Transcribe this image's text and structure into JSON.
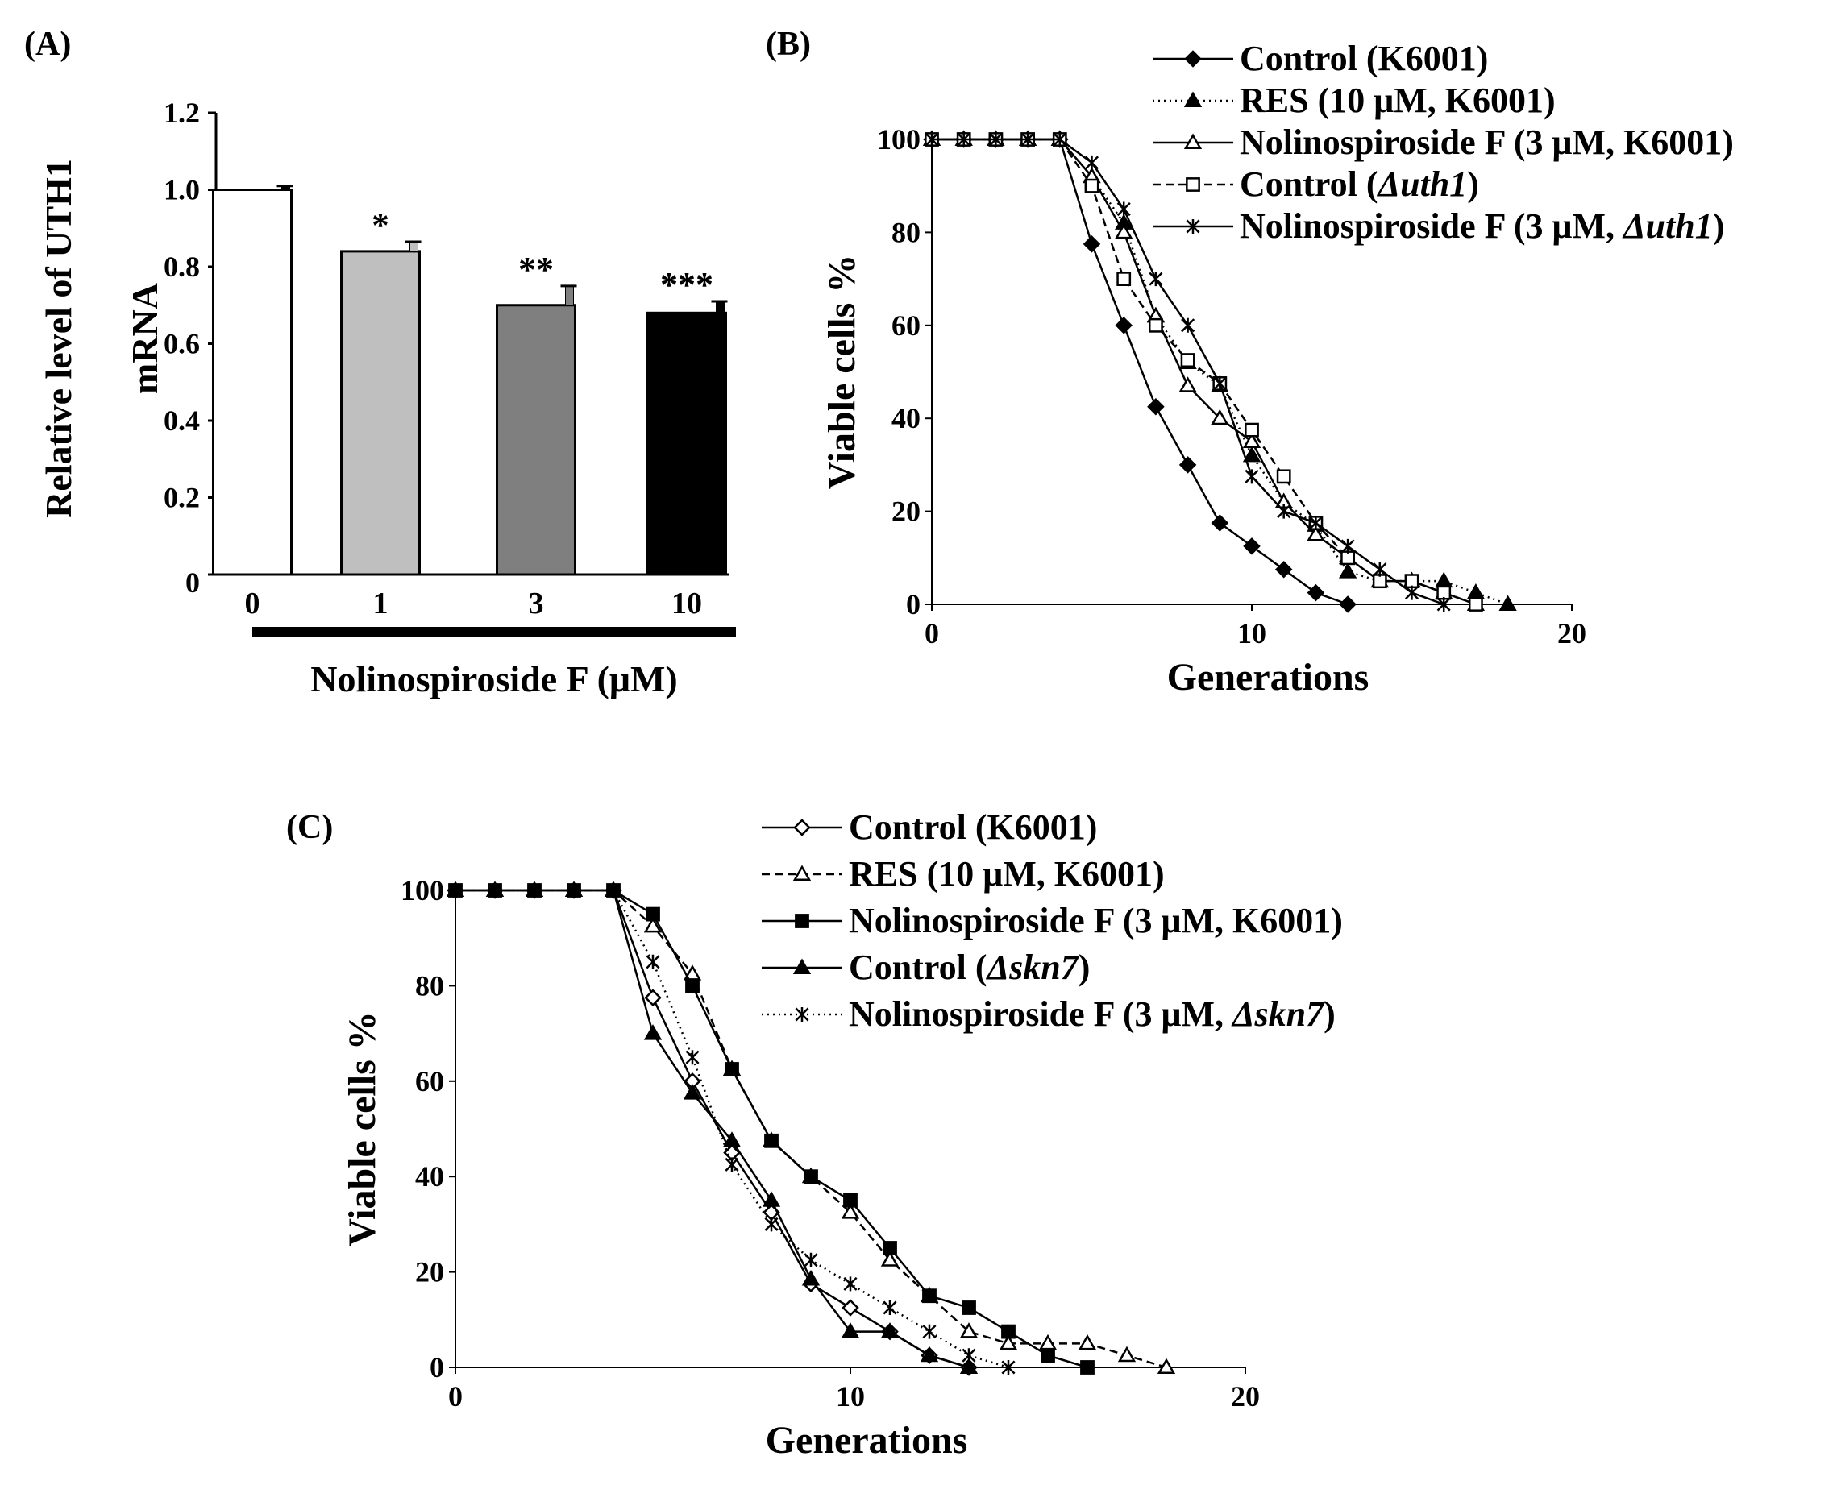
{
  "chart_data": [
    {
      "id": "A",
      "panel_label": "(A)",
      "type": "bar",
      "ylabel_lines": [
        "Relative level of UTH1",
        "mRNA"
      ],
      "xlabel": "Nolinospiroside F (μM)",
      "categories": [
        "0",
        "1",
        "3",
        "10"
      ],
      "values": [
        1.0,
        0.84,
        0.7,
        0.68
      ],
      "errors": [
        0.01,
        0.025,
        0.05,
        0.03
      ],
      "significance": [
        "",
        "*",
        "**",
        "***"
      ],
      "bar_colors": [
        "#ffffff",
        "#bfbfbf",
        "#7f7f7f",
        "#000000"
      ],
      "ylim": [
        0,
        1.2
      ],
      "yticks": [
        0,
        0.2,
        0.4,
        0.6,
        0.8,
        1.0,
        1.2
      ],
      "ytick_labels": [
        "0",
        "0.2",
        "0.4",
        "0.6",
        "0.8",
        "1.0",
        "1.2"
      ]
    },
    {
      "id": "B",
      "panel_label": "(B)",
      "type": "line",
      "xlabel": "Generations",
      "ylabel": "Viable cells %",
      "xlim": [
        0,
        20
      ],
      "ylim": [
        0,
        100
      ],
      "xticks": [
        0,
        10,
        20
      ],
      "yticks": [
        0,
        20,
        40,
        60,
        80,
        100
      ],
      "legend_position": "top-right",
      "series": [
        {
          "name": "Control (K6001)",
          "marker": "diamond-filled",
          "dash": "solid",
          "x": [
            0,
            1,
            2,
            3,
            4,
            5,
            6,
            7,
            8,
            9,
            10,
            11,
            12,
            13
          ],
          "y": [
            100,
            100,
            100,
            100,
            100,
            77.5,
            60,
            42.5,
            30,
            17.5,
            12.5,
            7.5,
            2.5,
            0
          ]
        },
        {
          "name": "RES (10 μM, K6001)",
          "marker": "triangle-filled",
          "dash": "dotted",
          "x": [
            0,
            1,
            2,
            3,
            4,
            5,
            6,
            7,
            8,
            9,
            10,
            11,
            12,
            13,
            14,
            15,
            16,
            17,
            18
          ],
          "y": [
            100,
            100,
            100,
            100,
            100,
            92,
            82,
            62,
            52,
            47,
            32,
            22,
            17,
            7,
            5,
            5,
            5,
            2.5,
            0
          ]
        },
        {
          "name": "Nolinospiroside F (3 μM, K6001)",
          "marker": "triangle-open",
          "dash": "solid",
          "x": [
            0,
            1,
            2,
            3,
            4,
            5,
            6,
            7,
            8,
            9,
            10,
            11,
            12,
            13,
            14,
            15,
            16,
            17
          ],
          "y": [
            100,
            100,
            100,
            100,
            100,
            92,
            80,
            62,
            47,
            40,
            35,
            22,
            15,
            10,
            5,
            5,
            2.5,
            0
          ]
        },
        {
          "name": "Control (",
          "name_italic": "Δuth1",
          "name_end": ")",
          "marker": "square-open",
          "dash": "dashed",
          "x": [
            0,
            1,
            2,
            3,
            4,
            5,
            6,
            7,
            8,
            9,
            10,
            11,
            12,
            13,
            14,
            15,
            16,
            17
          ],
          "y": [
            100,
            100,
            100,
            100,
            100,
            90,
            70,
            60,
            52.5,
            47.5,
            37.5,
            27.5,
            17.5,
            10,
            5,
            5,
            2.5,
            0
          ]
        },
        {
          "name": "Nolinospiroside F (3 μM, ",
          "name_italic": "Δuth1",
          "name_end": ")",
          "marker": "asterisk",
          "dash": "solid",
          "x": [
            0,
            1,
            2,
            3,
            4,
            5,
            6,
            7,
            8,
            9,
            10,
            11,
            12,
            13,
            14,
            15,
            16
          ],
          "y": [
            100,
            100,
            100,
            100,
            100,
            95,
            85,
            70,
            60,
            47.5,
            27.5,
            20,
            17.5,
            12.5,
            7.5,
            2.5,
            0
          ]
        }
      ]
    },
    {
      "id": "C",
      "panel_label": "(C)",
      "type": "line",
      "xlabel": "Generations",
      "ylabel": "Viable cells %",
      "xlim": [
        0,
        20
      ],
      "ylim": [
        0,
        100
      ],
      "xticks": [
        0,
        10,
        20
      ],
      "yticks": [
        0,
        20,
        40,
        60,
        80,
        100
      ],
      "legend_position": "top-right",
      "series": [
        {
          "name": "Control (K6001)",
          "marker": "diamond-open",
          "dash": "solid",
          "x": [
            0,
            1,
            2,
            3,
            4,
            5,
            6,
            7,
            8,
            9,
            10,
            11,
            12,
            13
          ],
          "y": [
            100,
            100,
            100,
            100,
            100,
            77.5,
            60,
            45,
            32.5,
            17.5,
            12.5,
            7.5,
            2.5,
            0
          ]
        },
        {
          "name": "RES (10 μM, K6001)",
          "marker": "triangle-open",
          "dash": "dashed",
          "x": [
            0,
            1,
            2,
            3,
            4,
            5,
            6,
            7,
            8,
            9,
            10,
            11,
            12,
            13,
            14,
            15,
            16,
            17,
            18
          ],
          "y": [
            100,
            100,
            100,
            100,
            100,
            92.5,
            82.5,
            62.5,
            47.5,
            40,
            32.5,
            22.5,
            15,
            7.5,
            5,
            5,
            5,
            2.5,
            0
          ]
        },
        {
          "name": "Nolinospiroside F (3 μM, K6001)",
          "marker": "square-filled",
          "dash": "solid",
          "x": [
            0,
            1,
            2,
            3,
            4,
            5,
            6,
            7,
            8,
            9,
            10,
            11,
            12,
            13,
            14,
            15,
            16
          ],
          "y": [
            100,
            100,
            100,
            100,
            100,
            95,
            80,
            62.5,
            47.5,
            40,
            35,
            25,
            15,
            12.5,
            7.5,
            2.5,
            0
          ]
        },
        {
          "name": "Control (",
          "name_italic": "Δskn7",
          "name_end": ")",
          "marker": "triangle-filled",
          "dash": "solid",
          "x": [
            0,
            1,
            2,
            3,
            4,
            5,
            6,
            7,
            8,
            9,
            10,
            11,
            12,
            13
          ],
          "y": [
            100,
            100,
            100,
            100,
            100,
            70,
            57.5,
            47.5,
            35,
            18.5,
            7.5,
            7.5,
            2.5,
            0
          ]
        },
        {
          "name": "Nolinospiroside F (3 μM, ",
          "name_italic": "Δskn7",
          "name_end": ")",
          "marker": "asterisk",
          "dash": "dotted",
          "x": [
            0,
            1,
            2,
            3,
            4,
            5,
            6,
            7,
            8,
            9,
            10,
            11,
            12,
            13,
            14
          ],
          "y": [
            100,
            100,
            100,
            100,
            100,
            85,
            65,
            42.5,
            30,
            22.5,
            17.5,
            12.5,
            7.5,
            2.5,
            0
          ]
        }
      ]
    }
  ]
}
